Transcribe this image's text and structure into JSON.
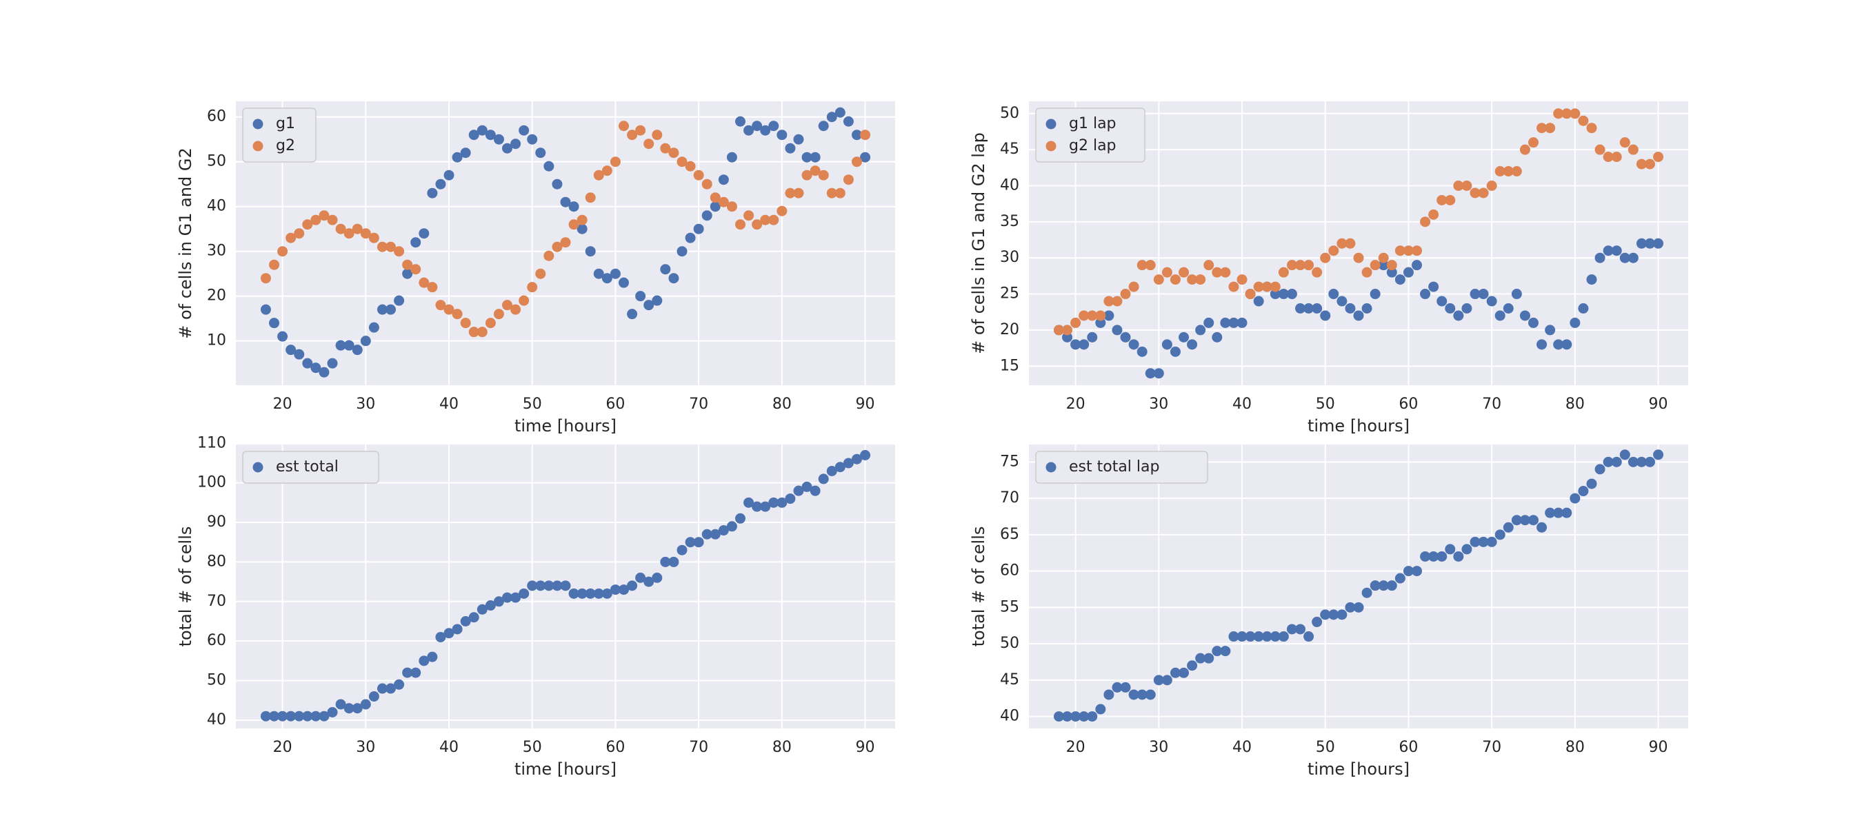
{
  "chart_data": [
    {
      "type": "scatter",
      "xlabel": "time [hours]",
      "ylabel": "# of cells in G1 and G2",
      "x": [
        18,
        19,
        20,
        21,
        22,
        23,
        24,
        25,
        26,
        27,
        28,
        29,
        30,
        31,
        32,
        33,
        34,
        35,
        36,
        37,
        38,
        39,
        40,
        41,
        42,
        43,
        44,
        45,
        46,
        47,
        48,
        49,
        50,
        51,
        52,
        53,
        54,
        55,
        56,
        57,
        58,
        59,
        60,
        61,
        62,
        63,
        64,
        65,
        66,
        67,
        68,
        69,
        70,
        71,
        72,
        73,
        74,
        75,
        76,
        77,
        78,
        79,
        80,
        81,
        82,
        83,
        84,
        85,
        86,
        87,
        88,
        89,
        90
      ],
      "series": [
        {
          "name": "g1",
          "color": "#4c72b0",
          "values": [
            17,
            14,
            11,
            8,
            7,
            5,
            4,
            3,
            5,
            9,
            9,
            8,
            10,
            13,
            17,
            17,
            19,
            25,
            32,
            34,
            43,
            45,
            47,
            51,
            52,
            56,
            57,
            56,
            55,
            53,
            54,
            57,
            55,
            52,
            49,
            45,
            41,
            40,
            35,
            30,
            25,
            24,
            25,
            23,
            16,
            20,
            18,
            19,
            26,
            24,
            30,
            33,
            35,
            38,
            40,
            46,
            51,
            59,
            57,
            58,
            57,
            58,
            56,
            53,
            55,
            51,
            51,
            58,
            60,
            61,
            59,
            56,
            51
          ]
        },
        {
          "name": "g2",
          "color": "#dd8452",
          "values": [
            24,
            27,
            30,
            33,
            34,
            36,
            37,
            38,
            37,
            35,
            34,
            35,
            34,
            33,
            31,
            31,
            30,
            27,
            26,
            23,
            22,
            18,
            17,
            16,
            14,
            12,
            12,
            14,
            16,
            18,
            17,
            19,
            22,
            25,
            29,
            31,
            32,
            36,
            37,
            42,
            47,
            48,
            50,
            58,
            56,
            57,
            54,
            56,
            53,
            52,
            50,
            49,
            47,
            45,
            42,
            41,
            40,
            36,
            38,
            36,
            37,
            37,
            39,
            43,
            43,
            47,
            48,
            47,
            43,
            43,
            46,
            50,
            56
          ]
        }
      ],
      "xlim": [
        14.4,
        93.6
      ],
      "ylim": [
        0.1,
        63.5
      ],
      "xticks": [
        20,
        30,
        40,
        50,
        60,
        70,
        80,
        90
      ],
      "yticks": [
        10,
        20,
        30,
        40,
        50,
        60
      ],
      "grid": true,
      "legend": "upper left"
    },
    {
      "type": "scatter",
      "xlabel": "time [hours]",
      "ylabel": "# of cells in G1 and G2 lap",
      "x": [
        18,
        19,
        20,
        21,
        22,
        23,
        24,
        25,
        26,
        27,
        28,
        29,
        30,
        31,
        32,
        33,
        34,
        35,
        36,
        37,
        38,
        39,
        40,
        41,
        42,
        43,
        44,
        45,
        46,
        47,
        48,
        49,
        50,
        51,
        52,
        53,
        54,
        55,
        56,
        57,
        58,
        59,
        60,
        61,
        62,
        63,
        64,
        65,
        66,
        67,
        68,
        69,
        70,
        71,
        72,
        73,
        74,
        75,
        76,
        77,
        78,
        79,
        80,
        81,
        82,
        83,
        84,
        85,
        86,
        87,
        88,
        89,
        90
      ],
      "series": [
        {
          "name": "g1 lap",
          "color": "#4c72b0",
          "values": [
            20,
            19,
            18,
            18,
            19,
            21,
            22,
            20,
            19,
            18,
            17,
            14,
            14,
            18,
            17,
            19,
            18,
            20,
            21,
            19,
            21,
            21,
            21,
            25,
            24,
            26,
            25,
            25,
            25,
            23,
            23,
            23,
            22,
            25,
            24,
            23,
            22,
            23,
            25,
            29,
            28,
            27,
            28,
            29,
            25,
            26,
            24,
            23,
            22,
            23,
            25,
            25,
            24,
            22,
            23,
            25,
            22,
            21,
            18,
            20,
            18,
            18,
            21,
            23,
            27,
            30,
            31,
            31,
            30,
            30,
            32,
            32,
            32
          ]
        },
        {
          "name": "g2 lap",
          "color": "#dd8452",
          "values": [
            20,
            20,
            21,
            22,
            22,
            22,
            24,
            24,
            25,
            26,
            29,
            29,
            27,
            28,
            27,
            28,
            27,
            27,
            29,
            28,
            28,
            26,
            27,
            25,
            26,
            26,
            26,
            28,
            29,
            29,
            29,
            28,
            30,
            31,
            32,
            32,
            30,
            28,
            29,
            30,
            29,
            31,
            31,
            31,
            35,
            36,
            38,
            38,
            40,
            40,
            39,
            39,
            40,
            42,
            42,
            42,
            45,
            46,
            48,
            48,
            50,
            50,
            50,
            49,
            48,
            45,
            44,
            44,
            46,
            45,
            43,
            43,
            44
          ]
        }
      ],
      "xlim": [
        14.4,
        93.6
      ],
      "ylim": [
        12.35,
        51.7
      ],
      "xticks": [
        20,
        30,
        40,
        50,
        60,
        70,
        80,
        90
      ],
      "yticks": [
        15,
        20,
        25,
        30,
        35,
        40,
        45,
        50
      ],
      "grid": true,
      "legend": "upper left"
    },
    {
      "type": "scatter",
      "xlabel": "time [hours]",
      "ylabel": "total # of cells",
      "x": [
        18,
        19,
        20,
        21,
        22,
        23,
        24,
        25,
        26,
        27,
        28,
        29,
        30,
        31,
        32,
        33,
        34,
        35,
        36,
        37,
        38,
        39,
        40,
        41,
        42,
        43,
        44,
        45,
        46,
        47,
        48,
        49,
        50,
        51,
        52,
        53,
        54,
        55,
        56,
        57,
        58,
        59,
        60,
        61,
        62,
        63,
        64,
        65,
        66,
        67,
        68,
        69,
        70,
        71,
        72,
        73,
        74,
        75,
        76,
        77,
        78,
        79,
        80,
        81,
        82,
        83,
        84,
        85,
        86,
        87,
        88,
        89,
        90
      ],
      "series": [
        {
          "name": "est total",
          "color": "#4c72b0",
          "values": [
            41,
            41,
            41,
            41,
            41,
            41,
            41,
            41,
            42,
            44,
            43,
            43,
            44,
            46,
            48,
            48,
            49,
            52,
            52,
            55,
            56,
            61,
            62,
            63,
            65,
            66,
            68,
            69,
            70,
            71,
            71,
            72,
            74,
            74,
            74,
            74,
            74,
            72,
            72,
            72,
            72,
            72,
            73,
            73,
            74,
            76,
            75,
            76,
            80,
            80,
            83,
            85,
            85,
            87,
            87,
            88,
            89,
            91,
            95,
            94,
            94,
            95,
            95,
            96,
            98,
            99,
            98,
            101,
            103,
            104,
            105,
            106,
            107
          ]
        }
      ],
      "xlim": [
        14.4,
        93.6
      ],
      "ylim": [
        37.9,
        109.7
      ],
      "xticks": [
        20,
        30,
        40,
        50,
        60,
        70,
        80,
        90
      ],
      "yticks": [
        40,
        50,
        60,
        70,
        80,
        90,
        100,
        110
      ],
      "grid": true,
      "legend": "upper left"
    },
    {
      "type": "scatter",
      "xlabel": "time [hours]",
      "ylabel": "total # of cells",
      "x": [
        18,
        19,
        20,
        21,
        22,
        23,
        24,
        25,
        26,
        27,
        28,
        29,
        30,
        31,
        32,
        33,
        34,
        35,
        36,
        37,
        38,
        39,
        40,
        41,
        42,
        43,
        44,
        45,
        46,
        47,
        48,
        49,
        50,
        51,
        52,
        53,
        54,
        55,
        56,
        57,
        58,
        59,
        60,
        61,
        62,
        63,
        64,
        65,
        66,
        67,
        68,
        69,
        70,
        71,
        72,
        73,
        74,
        75,
        76,
        77,
        78,
        79,
        80,
        81,
        82,
        83,
        84,
        85,
        86,
        87,
        88,
        89,
        90
      ],
      "series": [
        {
          "name": "est total lap",
          "color": "#4c72b0",
          "values": [
            40,
            40,
            40,
            40,
            40,
            41,
            43,
            44,
            44,
            43,
            43,
            43,
            45,
            45,
            46,
            46,
            47,
            48,
            48,
            49,
            49,
            51,
            51,
            51,
            51,
            51,
            51,
            51,
            52,
            52,
            51,
            53,
            54,
            54,
            54,
            55,
            55,
            57,
            58,
            58,
            58,
            59,
            60,
            60,
            62,
            62,
            62,
            63,
            62,
            63,
            64,
            64,
            64,
            65,
            66,
            67,
            67,
            67,
            66,
            68,
            68,
            68,
            70,
            71,
            72,
            74,
            75,
            75,
            76,
            75,
            75,
            75,
            76
          ]
        }
      ],
      "xlim": [
        14.4,
        93.6
      ],
      "ylim": [
        38.35,
        77.4
      ],
      "xticks": [
        20,
        30,
        40,
        50,
        60,
        70,
        80,
        90
      ],
      "yticks": [
        40,
        45,
        50,
        55,
        60,
        65,
        70,
        75
      ],
      "grid": true,
      "legend": "upper left"
    }
  ]
}
